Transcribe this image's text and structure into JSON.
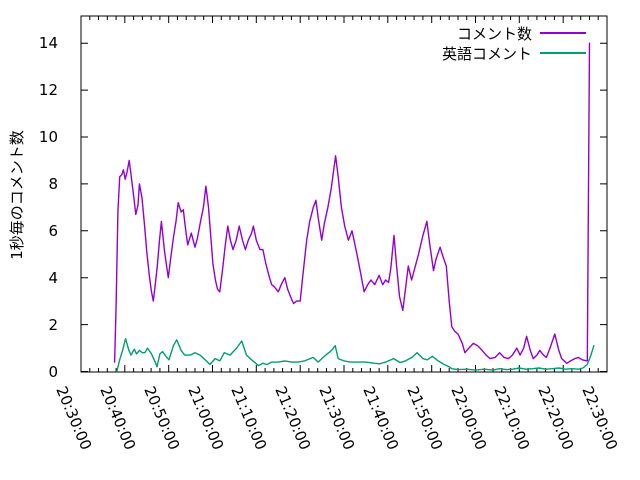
{
  "chart_data": {
    "type": "line",
    "title": "",
    "xlabel": "",
    "ylabel": "1秒毎のコメント数",
    "grid": false,
    "legend_position": "top-right-inside",
    "ylim": [
      0,
      14
    ],
    "y_ticks": [
      0,
      2,
      4,
      6,
      8,
      10,
      12,
      14
    ],
    "xlim": [
      "20:30:00",
      "22:30:00"
    ],
    "x_major_ticks": [
      "20:30:00",
      "20:40:00",
      "20:50:00",
      "21:00:00",
      "21:10:00",
      "21:20:00",
      "21:30:00",
      "21:40:00",
      "21:50:00",
      "22:00:00",
      "22:10:00",
      "22:20:00",
      "22:30:00"
    ],
    "x_minor_tick_interval_seconds": 120,
    "axis_color": "#000000",
    "background_color": "#ffffff",
    "series": [
      {
        "name": "コメント数",
        "color": "#9400d3",
        "points": [
          [
            "20:37:40",
            0.4
          ],
          [
            "20:38:00",
            2.8
          ],
          [
            "20:38:25",
            6.8
          ],
          [
            "20:38:50",
            8.3
          ],
          [
            "20:39:20",
            8.4
          ],
          [
            "20:39:40",
            8.6
          ],
          [
            "20:40:05",
            8.2
          ],
          [
            "20:40:30",
            8.5
          ],
          [
            "20:41:00",
            9.0
          ],
          [
            "20:41:25",
            8.4
          ],
          [
            "20:42:00",
            7.5
          ],
          [
            "20:42:30",
            6.7
          ],
          [
            "20:43:00",
            7.1
          ],
          [
            "20:43:20",
            8.0
          ],
          [
            "20:43:55",
            7.4
          ],
          [
            "20:44:30",
            6.2
          ],
          [
            "20:45:00",
            5.1
          ],
          [
            "20:45:35",
            4.1
          ],
          [
            "20:46:05",
            3.4
          ],
          [
            "20:46:30",
            3.0
          ],
          [
            "20:47:00",
            3.8
          ],
          [
            "20:47:25",
            4.5
          ],
          [
            "20:47:55",
            5.6
          ],
          [
            "20:48:20",
            6.4
          ],
          [
            "20:49:05",
            5.1
          ],
          [
            "20:49:55",
            4.0
          ],
          [
            "20:50:30",
            4.9
          ],
          [
            "20:51:05",
            5.7
          ],
          [
            "20:51:40",
            6.4
          ],
          [
            "20:52:10",
            7.2
          ],
          [
            "20:52:50",
            6.8
          ],
          [
            "20:53:20",
            6.9
          ],
          [
            "20:53:50",
            6.1
          ],
          [
            "20:54:20",
            5.4
          ],
          [
            "20:55:10",
            5.9
          ],
          [
            "20:56:00",
            5.3
          ],
          [
            "20:56:35",
            5.7
          ],
          [
            "20:57:10",
            6.3
          ],
          [
            "20:57:55",
            7.0
          ],
          [
            "20:58:30",
            7.9
          ],
          [
            "20:59:05",
            7.0
          ],
          [
            "20:59:35",
            5.8
          ],
          [
            "21:00:05",
            4.6
          ],
          [
            "21:00:40",
            3.9
          ],
          [
            "21:01:10",
            3.5
          ],
          [
            "21:01:40",
            3.4
          ],
          [
            "21:02:20",
            4.4
          ],
          [
            "21:02:55",
            5.4
          ],
          [
            "21:03:30",
            6.2
          ],
          [
            "21:04:05",
            5.6
          ],
          [
            "21:04:40",
            5.2
          ],
          [
            "21:05:25",
            5.6
          ],
          [
            "21:06:05",
            6.2
          ],
          [
            "21:06:50",
            5.6
          ],
          [
            "21:07:30",
            5.2
          ],
          [
            "21:08:10",
            5.6
          ],
          [
            "21:08:55",
            5.9
          ],
          [
            "21:09:20",
            6.2
          ],
          [
            "21:10:00",
            5.6
          ],
          [
            "21:10:50",
            5.2
          ],
          [
            "21:11:30",
            5.2
          ],
          [
            "21:12:10",
            4.6
          ],
          [
            "21:13:00",
            4.0
          ],
          [
            "21:13:30",
            3.7
          ],
          [
            "21:14:10",
            3.6
          ],
          [
            "21:15:00",
            3.4
          ],
          [
            "21:15:40",
            3.7
          ],
          [
            "21:16:30",
            4.0
          ],
          [
            "21:17:10",
            3.5
          ],
          [
            "21:18:00",
            3.1
          ],
          [
            "21:18:30",
            2.9
          ],
          [
            "21:19:10",
            3.0
          ],
          [
            "21:20:00",
            3.0
          ],
          [
            "21:20:40",
            4.2
          ],
          [
            "21:21:30",
            5.6
          ],
          [
            "21:22:10",
            6.4
          ],
          [
            "21:23:00",
            7.0
          ],
          [
            "21:23:35",
            7.3
          ],
          [
            "21:24:10",
            6.5
          ],
          [
            "21:24:55",
            5.6
          ],
          [
            "21:25:30",
            6.3
          ],
          [
            "21:26:20",
            7.0
          ],
          [
            "21:27:05",
            7.8
          ],
          [
            "21:28:05",
            9.2
          ],
          [
            "21:28:40",
            8.3
          ],
          [
            "21:29:25",
            7.0
          ],
          [
            "21:30:10",
            6.2
          ],
          [
            "21:31:00",
            5.6
          ],
          [
            "21:31:50",
            6.0
          ],
          [
            "21:32:30",
            5.4
          ],
          [
            "21:33:10",
            4.8
          ],
          [
            "21:34:00",
            4.0
          ],
          [
            "21:34:35",
            3.4
          ],
          [
            "21:35:25",
            3.7
          ],
          [
            "21:36:10",
            3.9
          ],
          [
            "21:37:00",
            3.7
          ],
          [
            "21:38:00",
            4.1
          ],
          [
            "21:38:50",
            3.7
          ],
          [
            "21:39:30",
            3.9
          ],
          [
            "21:40:10",
            3.8
          ],
          [
            "21:40:40",
            4.4
          ],
          [
            "21:41:25",
            5.8
          ],
          [
            "21:42:00",
            4.5
          ],
          [
            "21:42:40",
            3.2
          ],
          [
            "21:43:25",
            2.6
          ],
          [
            "21:44:00",
            3.5
          ],
          [
            "21:44:40",
            4.5
          ],
          [
            "21:45:25",
            3.9
          ],
          [
            "21:46:00",
            4.3
          ],
          [
            "21:47:00",
            5.0
          ],
          [
            "21:48:00",
            5.8
          ],
          [
            "21:48:55",
            6.4
          ],
          [
            "21:49:30",
            5.5
          ],
          [
            "21:50:25",
            4.3
          ],
          [
            "21:51:00",
            4.8
          ],
          [
            "21:51:55",
            5.3
          ],
          [
            "21:52:35",
            4.9
          ],
          [
            "21:53:20",
            4.5
          ],
          [
            "21:54:00",
            3.0
          ],
          [
            "21:54:35",
            1.9
          ],
          [
            "21:55:20",
            1.7
          ],
          [
            "21:56:00",
            1.6
          ],
          [
            "21:57:00",
            1.2
          ],
          [
            "21:57:35",
            0.8
          ],
          [
            "21:58:30",
            1.0
          ],
          [
            "21:59:30",
            1.2
          ],
          [
            "22:00:30",
            1.1
          ],
          [
            "22:01:30",
            0.9
          ],
          [
            "22:02:25",
            0.7
          ],
          [
            "22:03:20",
            0.55
          ],
          [
            "22:04:30",
            0.6
          ],
          [
            "22:05:30",
            0.8
          ],
          [
            "22:06:30",
            0.6
          ],
          [
            "22:07:30",
            0.55
          ],
          [
            "22:08:25",
            0.7
          ],
          [
            "22:09:25",
            1.0
          ],
          [
            "22:10:10",
            0.7
          ],
          [
            "22:11:00",
            1.0
          ],
          [
            "22:11:40",
            1.5
          ],
          [
            "22:12:30",
            0.9
          ],
          [
            "22:13:10",
            0.55
          ],
          [
            "22:14:00",
            0.7
          ],
          [
            "22:14:40",
            0.9
          ],
          [
            "22:15:30",
            0.7
          ],
          [
            "22:16:10",
            0.6
          ],
          [
            "22:17:00",
            1.0
          ],
          [
            "22:18:05",
            1.6
          ],
          [
            "22:19:00",
            0.9
          ],
          [
            "22:19:40",
            0.55
          ],
          [
            "22:20:50",
            0.35
          ],
          [
            "22:21:40",
            0.45
          ],
          [
            "22:22:40",
            0.55
          ],
          [
            "22:23:30",
            0.6
          ],
          [
            "22:24:20",
            0.5
          ],
          [
            "22:25:30",
            0.45
          ],
          [
            "22:26:00",
            14.0
          ]
        ]
      },
      {
        "name": "英語コメント",
        "color": "#009e73",
        "points": [
          [
            "20:38:10",
            0.0
          ],
          [
            "20:38:50",
            0.5
          ],
          [
            "20:39:30",
            0.9
          ],
          [
            "20:40:10",
            1.4
          ],
          [
            "20:40:55",
            0.9
          ],
          [
            "20:41:25",
            0.7
          ],
          [
            "20:42:10",
            0.95
          ],
          [
            "20:42:40",
            0.75
          ],
          [
            "20:43:20",
            0.9
          ],
          [
            "20:44:00",
            0.8
          ],
          [
            "20:44:35",
            0.8
          ],
          [
            "20:45:10",
            1.0
          ],
          [
            "20:46:05",
            0.75
          ],
          [
            "20:46:55",
            0.4
          ],
          [
            "20:47:20",
            0.2
          ],
          [
            "20:48:00",
            0.75
          ],
          [
            "20:48:35",
            0.85
          ],
          [
            "20:49:35",
            0.6
          ],
          [
            "20:50:05",
            0.5
          ],
          [
            "20:51:05",
            1.1
          ],
          [
            "20:51:50",
            1.35
          ],
          [
            "20:52:50",
            0.9
          ],
          [
            "20:53:40",
            0.7
          ],
          [
            "20:54:55",
            0.7
          ],
          [
            "20:56:00",
            0.8
          ],
          [
            "20:57:10",
            0.7
          ],
          [
            "20:58:20",
            0.5
          ],
          [
            "20:59:25",
            0.3
          ],
          [
            "21:00:35",
            0.55
          ],
          [
            "21:01:40",
            0.45
          ],
          [
            "21:02:40",
            0.8
          ],
          [
            "21:04:00",
            0.7
          ],
          [
            "21:05:30",
            1.0
          ],
          [
            "21:06:40",
            1.3
          ],
          [
            "21:07:45",
            0.7
          ],
          [
            "21:08:55",
            0.5
          ],
          [
            "21:10:30",
            0.25
          ],
          [
            "21:11:30",
            0.35
          ],
          [
            "21:12:25",
            0.3
          ],
          [
            "21:13:30",
            0.4
          ],
          [
            "21:15:00",
            0.4
          ],
          [
            "21:16:30",
            0.45
          ],
          [
            "21:18:00",
            0.4
          ],
          [
            "21:19:30",
            0.4
          ],
          [
            "21:21:00",
            0.45
          ],
          [
            "21:23:00",
            0.6
          ],
          [
            "21:24:05",
            0.4
          ],
          [
            "21:25:30",
            0.65
          ],
          [
            "21:27:10",
            0.9
          ],
          [
            "21:28:00",
            1.1
          ],
          [
            "21:28:40",
            0.55
          ],
          [
            "21:30:00",
            0.45
          ],
          [
            "21:31:30",
            0.4
          ],
          [
            "21:33:30",
            0.4
          ],
          [
            "21:35:00",
            0.4
          ],
          [
            "21:37:00",
            0.35
          ],
          [
            "21:38:10",
            0.33
          ],
          [
            "21:39:30",
            0.4
          ],
          [
            "21:41:20",
            0.55
          ],
          [
            "21:42:50",
            0.38
          ],
          [
            "21:44:00",
            0.45
          ],
          [
            "21:45:30",
            0.6
          ],
          [
            "21:46:40",
            0.8
          ],
          [
            "21:48:00",
            0.55
          ],
          [
            "21:49:00",
            0.5
          ],
          [
            "21:50:10",
            0.65
          ],
          [
            "21:51:30",
            0.45
          ],
          [
            "21:52:50",
            0.3
          ],
          [
            "21:54:00",
            0.2
          ],
          [
            "21:54:35",
            0.12
          ],
          [
            "21:56:00",
            0.08
          ],
          [
            "21:58:00",
            0.1
          ],
          [
            "22:00:00",
            0.06
          ],
          [
            "22:02:00",
            0.1
          ],
          [
            "22:04:00",
            0.06
          ],
          [
            "22:05:30",
            0.12
          ],
          [
            "22:07:00",
            0.08
          ],
          [
            "22:08:30",
            0.1
          ],
          [
            "22:10:00",
            0.15
          ],
          [
            "22:11:30",
            0.1
          ],
          [
            "22:13:00",
            0.12
          ],
          [
            "22:14:30",
            0.15
          ],
          [
            "22:16:00",
            0.1
          ],
          [
            "22:17:30",
            0.12
          ],
          [
            "22:19:00",
            0.15
          ],
          [
            "22:20:30",
            0.1
          ],
          [
            "22:22:00",
            0.12
          ],
          [
            "22:23:30",
            0.1
          ],
          [
            "22:24:30",
            0.15
          ],
          [
            "22:25:30",
            0.3
          ],
          [
            "22:26:20",
            0.7
          ],
          [
            "22:27:00",
            1.1
          ]
        ]
      }
    ]
  }
}
